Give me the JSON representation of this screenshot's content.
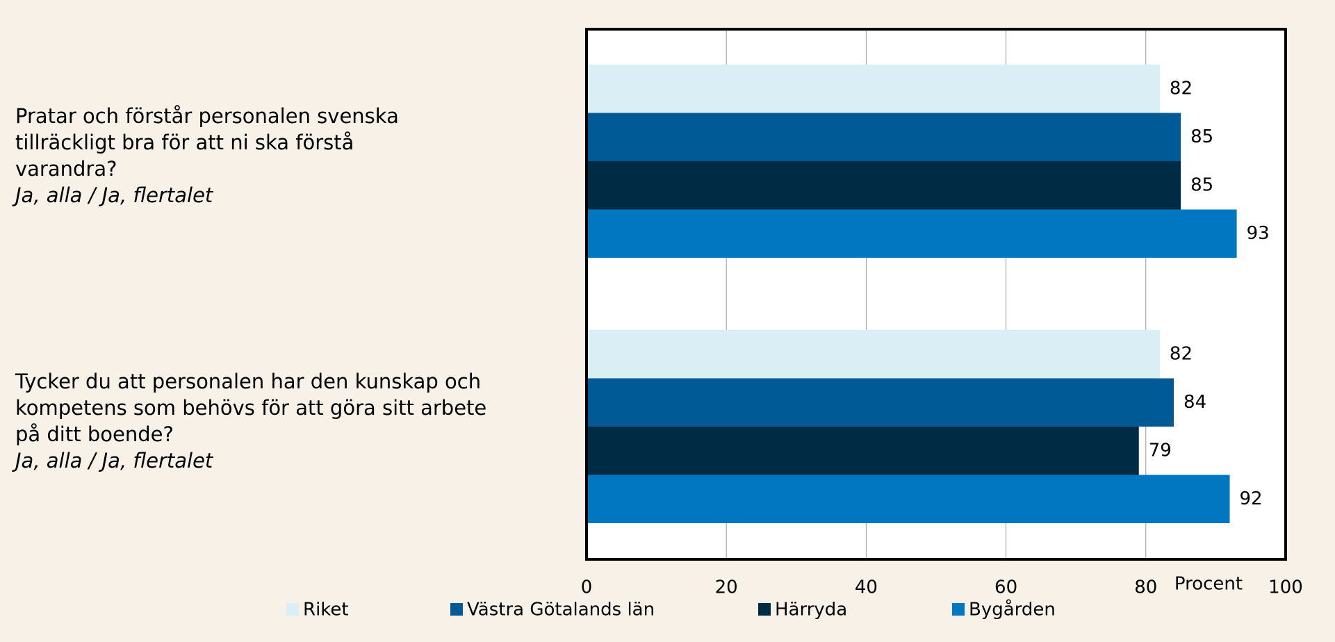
{
  "chart_data": {
    "type": "bar",
    "orientation": "horizontal",
    "categories": [
      "Pratar och förstår personalen svenska tillräckligt bra för att ni ska förstå varandra?",
      "Tycker du att personalen har den kunskap och kompetens som behövs för att göra sitt arbete på ditt boende?"
    ],
    "category_notes": [
      "Ja, alla / Ja, flertalet",
      "Ja, alla / Ja, flertalet"
    ],
    "series": [
      {
        "name": "Riket",
        "color": "#daeef6",
        "values": [
          82,
          82
        ]
      },
      {
        "name": "Västra Götalands län",
        "color": "#005a96",
        "values": [
          85,
          84
        ]
      },
      {
        "name": "Härryda",
        "color": "#002b45",
        "values": [
          85,
          79
        ]
      },
      {
        "name": "Bygården",
        "color": "#0077c0",
        "values": [
          93,
          92
        ]
      }
    ],
    "xlabel": "Procent",
    "xlim": [
      0,
      100
    ],
    "xticks": [
      0,
      20,
      40,
      60,
      80,
      100
    ],
    "grid": true,
    "legend": "bottom"
  }
}
